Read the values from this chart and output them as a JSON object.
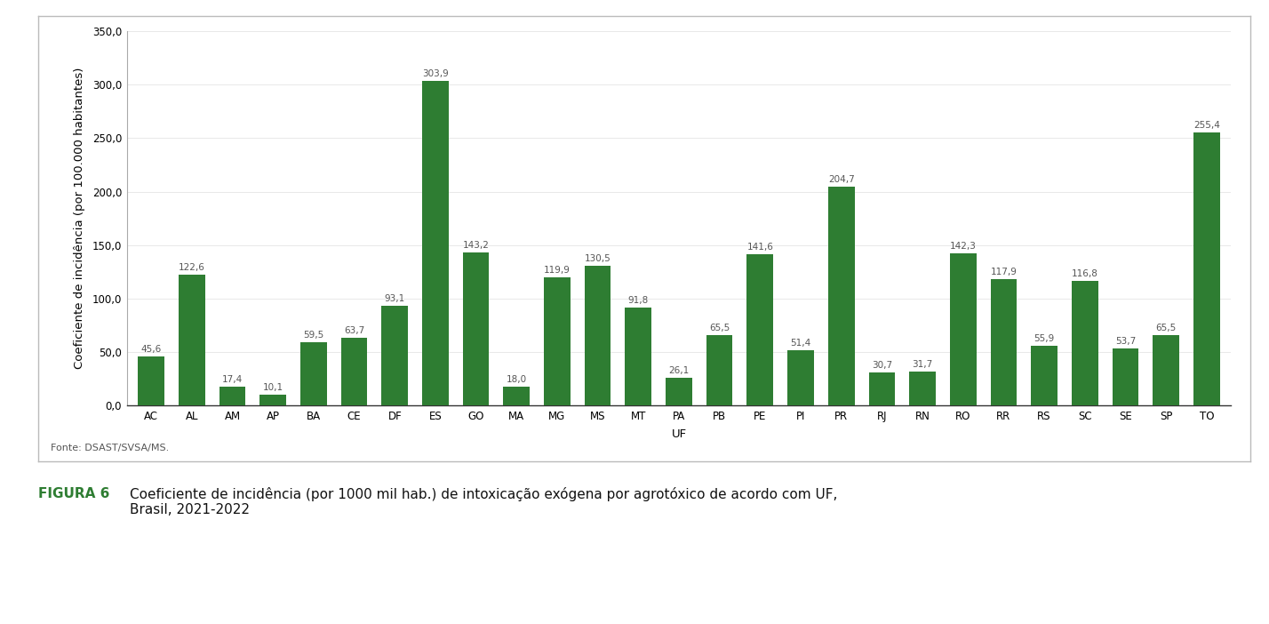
{
  "categories": [
    "AC",
    "AL",
    "AM",
    "AP",
    "BA",
    "CE",
    "DF",
    "ES",
    "GO",
    "MA",
    "MG",
    "MS",
    "MT",
    "PA",
    "PB",
    "PE",
    "PI",
    "PR",
    "RJ",
    "RN",
    "RO",
    "RR",
    "RS",
    "SC",
    "SE",
    "SP",
    "TO"
  ],
  "values": [
    45.6,
    122.6,
    17.4,
    10.1,
    59.5,
    63.7,
    93.1,
    303.9,
    143.2,
    18.0,
    119.9,
    130.5,
    91.8,
    26.1,
    65.5,
    141.6,
    51.4,
    204.7,
    30.7,
    31.7,
    142.3,
    117.9,
    55.9,
    116.8,
    53.7,
    65.5,
    255.4
  ],
  "bar_color": "#2e7d32",
  "ylabel": "Coeficiente de incidência (por 100.000 habitantes)",
  "xlabel": "UF",
  "ylim": [
    0,
    350
  ],
  "yticks": [
    0.0,
    50.0,
    100.0,
    150.0,
    200.0,
    250.0,
    300.0,
    350.0
  ],
  "ytick_labels": [
    "0,0",
    "50,0",
    "100,0",
    "150,0",
    "200,0",
    "250,0",
    "300,0",
    "350,0"
  ],
  "source_text": "Fonte: DSAST/SVSA/MS.",
  "figure_label": "FIGURA 6",
  "figure_caption": "Coeficiente de incidência (por 1000 mil hab.) de intoxicação exógena por agrotóxico de acordo com UF,\nBrasil, 2021-2022",
  "figure_label_color": "#2e7d32",
  "bar_label_fontsize": 7.5,
  "axis_label_fontsize": 9.5,
  "tick_fontsize": 8.5,
  "source_fontsize": 8,
  "caption_fontsize": 11,
  "background_color": "#ffffff",
  "border_color": "#bbbbbb"
}
